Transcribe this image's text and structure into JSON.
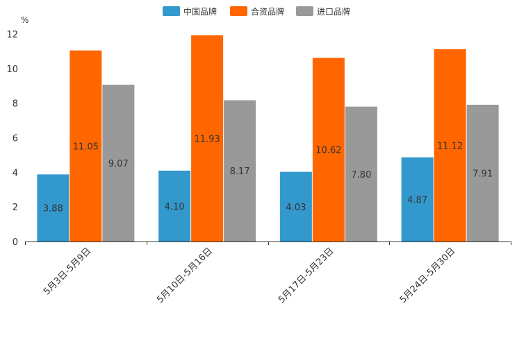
{
  "chart_data": {
    "type": "bar",
    "unit_label": "%",
    "categories": [
      "5月3日-5月9日",
      "5月10日-5月16日",
      "5月17日-5月23日",
      "5月24日-5月30日"
    ],
    "series": [
      {
        "name": "中国品牌",
        "color": "#3399cc",
        "values": [
          3.88,
          4.1,
          4.03,
          4.87
        ]
      },
      {
        "name": "合资品牌",
        "color": "#ff6600",
        "values": [
          11.05,
          11.93,
          10.62,
          11.12
        ]
      },
      {
        "name": "进口品牌",
        "color": "#999999",
        "values": [
          9.07,
          8.17,
          7.8,
          7.91
        ]
      }
    ],
    "value_labels": [
      [
        "3.88",
        "4.10",
        "4.03",
        "4.87"
      ],
      [
        "11.05",
        "11.93",
        "10.62",
        "11.12"
      ],
      [
        "9.07",
        "8.17",
        "7.80",
        "7.91"
      ]
    ],
    "ylim": [
      0,
      12
    ],
    "yticks": [
      0,
      2,
      4,
      6,
      8,
      10,
      12
    ],
    "legend_position": "top-center",
    "label_color": "#333333"
  }
}
